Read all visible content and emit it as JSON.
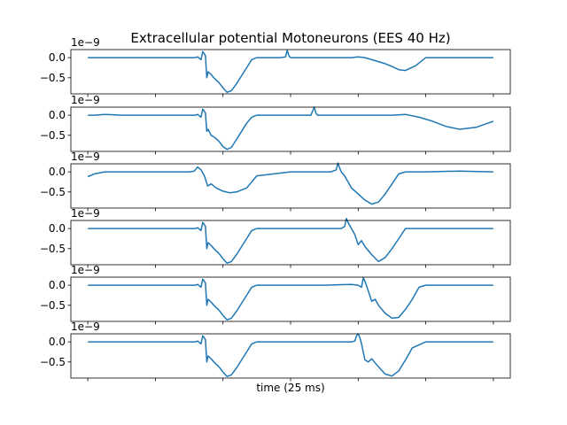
{
  "chart_data": {
    "type": "line",
    "title": "Extracellular potential Motoneurons (EES 40 Hz)",
    "xlabel": "time (25 ms)",
    "ylabel": "",
    "offset_text": "1e−9",
    "color": "#1f77b4",
    "grid": false,
    "x_ticks_labeled": false,
    "ylim": [
      -0.9,
      0.2
    ],
    "yticks": [
      0.0,
      -0.5
    ],
    "ytick_labels": [
      "0.0",
      "−0.5"
    ],
    "panels": [
      {
        "x": [
          0.0,
          0.3,
          0.318,
          0.325,
          0.335,
          0.34,
          0.343,
          0.348,
          0.352,
          0.356,
          0.365,
          0.375,
          0.388,
          0.4,
          0.412,
          0.425,
          0.44,
          0.455,
          0.47,
          0.485,
          0.5,
          0.525,
          0.55,
          0.57,
          0.585,
          0.59,
          0.595,
          0.6,
          0.62,
          0.7,
          0.78,
          0.8,
          0.82,
          0.84,
          0.86,
          0.88,
          0.9,
          0.92,
          0.94,
          0.97,
          1.0,
          1.1,
          1.2
        ],
        "y": [
          0.0,
          0.0,
          0.0,
          0.02,
          -0.05,
          0.15,
          0.12,
          0.05,
          -0.5,
          -0.35,
          -0.42,
          -0.52,
          -0.62,
          -0.75,
          -0.86,
          -0.82,
          -0.65,
          -0.45,
          -0.25,
          -0.05,
          0.0,
          0.0,
          0.0,
          0.0,
          0.02,
          0.18,
          0.05,
          0.0,
          0.0,
          0.0,
          0.0,
          0.02,
          0.0,
          -0.05,
          -0.1,
          -0.15,
          -0.22,
          -0.3,
          -0.32,
          -0.2,
          0.0,
          0.0,
          0.0
        ]
      },
      {
        "x": [
          0.0,
          0.02,
          0.05,
          0.1,
          0.2,
          0.3,
          0.318,
          0.325,
          0.335,
          0.34,
          0.343,
          0.348,
          0.352,
          0.356,
          0.365,
          0.375,
          0.388,
          0.4,
          0.412,
          0.425,
          0.44,
          0.455,
          0.47,
          0.485,
          0.5,
          0.6,
          0.66,
          0.67,
          0.675,
          0.68,
          0.7,
          0.8,
          0.9,
          0.94,
          0.98,
          1.02,
          1.06,
          1.1,
          1.15,
          1.2
        ],
        "y": [
          0.0,
          0.0,
          0.02,
          0.0,
          0.0,
          0.0,
          0.0,
          0.02,
          -0.05,
          0.15,
          0.12,
          0.05,
          -0.4,
          -0.35,
          -0.5,
          -0.55,
          -0.65,
          -0.78,
          -0.85,
          -0.8,
          -0.6,
          -0.4,
          -0.2,
          -0.05,
          0.0,
          0.0,
          0.0,
          0.2,
          0.05,
          0.0,
          0.0,
          0.0,
          0.0,
          0.02,
          -0.05,
          -0.15,
          -0.28,
          -0.35,
          -0.3,
          -0.15
        ]
      },
      {
        "x": [
          0.0,
          0.02,
          0.05,
          0.1,
          0.2,
          0.3,
          0.315,
          0.325,
          0.335,
          0.345,
          0.355,
          0.365,
          0.38,
          0.4,
          0.42,
          0.44,
          0.47,
          0.5,
          0.6,
          0.72,
          0.735,
          0.74,
          0.745,
          0.75,
          0.76,
          0.77,
          0.78,
          0.8,
          0.82,
          0.84,
          0.86,
          0.88,
          0.9,
          0.92,
          0.94,
          1.0,
          1.1,
          1.2
        ],
        "y": [
          -0.12,
          -0.05,
          0.0,
          0.0,
          0.0,
          0.0,
          0.02,
          0.12,
          0.05,
          -0.1,
          -0.35,
          -0.3,
          -0.4,
          -0.48,
          -0.52,
          -0.5,
          -0.4,
          -0.1,
          0.0,
          0.0,
          0.05,
          0.22,
          0.1,
          0.0,
          -0.1,
          -0.25,
          -0.4,
          -0.55,
          -0.7,
          -0.8,
          -0.75,
          -0.55,
          -0.3,
          -0.05,
          0.0,
          0.0,
          0.02,
          0.0
        ]
      },
      {
        "x": [
          0.0,
          0.3,
          0.318,
          0.325,
          0.335,
          0.34,
          0.343,
          0.348,
          0.352,
          0.356,
          0.365,
          0.375,
          0.388,
          0.4,
          0.412,
          0.425,
          0.44,
          0.455,
          0.47,
          0.485,
          0.5,
          0.6,
          0.75,
          0.76,
          0.765,
          0.77,
          0.78,
          0.79,
          0.8,
          0.81,
          0.82,
          0.84,
          0.86,
          0.88,
          0.9,
          0.92,
          0.94,
          1.0,
          1.1,
          1.2
        ],
        "y": [
          0.0,
          0.0,
          0.0,
          0.02,
          -0.05,
          0.15,
          0.12,
          0.05,
          -0.5,
          -0.35,
          -0.42,
          -0.52,
          -0.62,
          -0.75,
          -0.86,
          -0.82,
          -0.65,
          -0.45,
          -0.25,
          -0.05,
          0.0,
          0.0,
          0.0,
          0.05,
          0.25,
          0.15,
          0.0,
          -0.15,
          -0.4,
          -0.3,
          -0.45,
          -0.65,
          -0.82,
          -0.72,
          -0.5,
          -0.25,
          0.0,
          0.0,
          0.0,
          0.0
        ]
      },
      {
        "x": [
          0.0,
          0.3,
          0.318,
          0.325,
          0.335,
          0.34,
          0.343,
          0.348,
          0.352,
          0.356,
          0.365,
          0.375,
          0.388,
          0.4,
          0.412,
          0.425,
          0.44,
          0.455,
          0.47,
          0.485,
          0.5,
          0.7,
          0.78,
          0.8,
          0.81,
          0.815,
          0.82,
          0.83,
          0.84,
          0.85,
          0.86,
          0.88,
          0.9,
          0.92,
          0.94,
          0.96,
          0.98,
          1.0,
          1.1,
          1.2
        ],
        "y": [
          0.0,
          0.0,
          0.0,
          0.02,
          -0.05,
          0.15,
          0.12,
          0.05,
          -0.5,
          -0.35,
          -0.42,
          -0.52,
          -0.62,
          -0.75,
          -0.86,
          -0.82,
          -0.65,
          -0.45,
          -0.25,
          -0.05,
          0.0,
          0.0,
          0.02,
          0.0,
          -0.05,
          0.18,
          0.1,
          -0.15,
          -0.4,
          -0.35,
          -0.5,
          -0.7,
          -0.82,
          -0.8,
          -0.6,
          -0.35,
          -0.05,
          0.0,
          0.0,
          0.0
        ]
      },
      {
        "x": [
          0.0,
          0.3,
          0.318,
          0.325,
          0.335,
          0.34,
          0.343,
          0.348,
          0.352,
          0.356,
          0.365,
          0.375,
          0.388,
          0.4,
          0.412,
          0.425,
          0.44,
          0.455,
          0.47,
          0.485,
          0.5,
          0.6,
          0.78,
          0.79,
          0.795,
          0.8,
          0.805,
          0.81,
          0.815,
          0.82,
          0.83,
          0.84,
          0.86,
          0.88,
          0.9,
          0.92,
          0.94,
          0.96,
          1.0,
          1.1,
          1.2
        ],
        "y": [
          0.0,
          0.0,
          0.0,
          0.02,
          -0.05,
          0.15,
          0.12,
          0.05,
          -0.5,
          -0.35,
          -0.42,
          -0.52,
          -0.62,
          -0.75,
          -0.86,
          -0.82,
          -0.65,
          -0.45,
          -0.25,
          -0.05,
          0.0,
          0.0,
          0.0,
          0.02,
          0.15,
          0.2,
          0.1,
          -0.05,
          -0.25,
          -0.45,
          -0.5,
          -0.42,
          -0.62,
          -0.8,
          -0.85,
          -0.72,
          -0.45,
          -0.15,
          0.0,
          0.0,
          0.0
        ]
      }
    ]
  }
}
